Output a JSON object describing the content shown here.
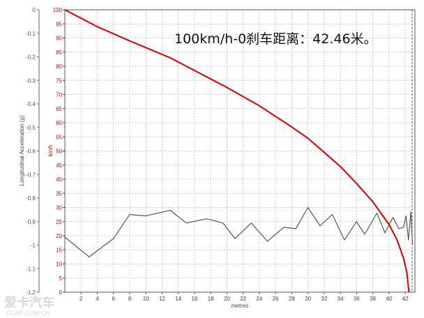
{
  "chart_data": {
    "type": "line",
    "annotation": "100km/h-0刹车距离：42.46米。",
    "xlabel": "metres",
    "ylabel_left": "Longitudinal Acceleration (g)",
    "ylabel_right": "km/h",
    "xlim": [
      0,
      43.2
    ],
    "xticks": [
      2,
      4,
      6,
      8,
      10,
      12,
      14,
      16,
      18,
      20,
      22,
      24,
      26,
      28,
      30,
      32,
      34,
      36,
      38,
      40,
      42
    ],
    "ylim_left": [
      -1.2,
      0
    ],
    "yticks_left": [
      "0",
      "-0.1",
      "-0.2",
      "-0.3",
      "-0.4",
      "-0.5",
      "-0.6",
      "-0.7",
      "-0.8",
      "-0.9",
      "-1",
      "-1.1",
      "-1.2"
    ],
    "ylim_right": [
      0,
      100
    ],
    "yticks_right": [
      "100",
      "95",
      "90",
      "85",
      "80",
      "75",
      "70",
      "65",
      "60",
      "55",
      "50",
      "45",
      "40",
      "35",
      "30",
      "25",
      "20",
      "15",
      "10",
      "5",
      "0"
    ],
    "grid": true,
    "colors": {
      "speed": "#cc1111",
      "accel": "#555555",
      "grid": "#b8b8b8",
      "right_axis": "#cc0000"
    },
    "series": [
      {
        "axis": "right",
        "x": [
          0,
          4,
          8,
          13,
          17,
          20,
          24,
          28,
          30,
          32,
          34,
          36,
          38,
          40,
          41,
          41.8,
          42.2,
          42.46
        ],
        "values": [
          100,
          94,
          89,
          83,
          77,
          72.5,
          66,
          58.5,
          54.5,
          49.5,
          44.5,
          38.5,
          32,
          24,
          18.5,
          12,
          7,
          0
        ]
      },
      {
        "axis": "right",
        "x": [
          0,
          3,
          6,
          8,
          10,
          13,
          15,
          17.5,
          19.5,
          21,
          23,
          25,
          27,
          28.5,
          30,
          31.5,
          33,
          34.5,
          36,
          37,
          38.5,
          39.5,
          40.5,
          41.2,
          41.8,
          42.1,
          42.4,
          42.7,
          42.9
        ],
        "values": [
          19.5,
          12.5,
          19,
          27.5,
          27,
          29,
          24.5,
          26,
          24.5,
          19,
          24.5,
          18,
          23,
          22.5,
          30,
          23.5,
          27.5,
          18.5,
          25,
          20.5,
          28,
          21,
          26.5,
          22.5,
          23,
          27,
          18.5,
          28.5,
          17
        ]
      }
    ]
  },
  "watermark": {
    "main": "爱卡汽车",
    "sub": "XCAR.COM.CN"
  }
}
